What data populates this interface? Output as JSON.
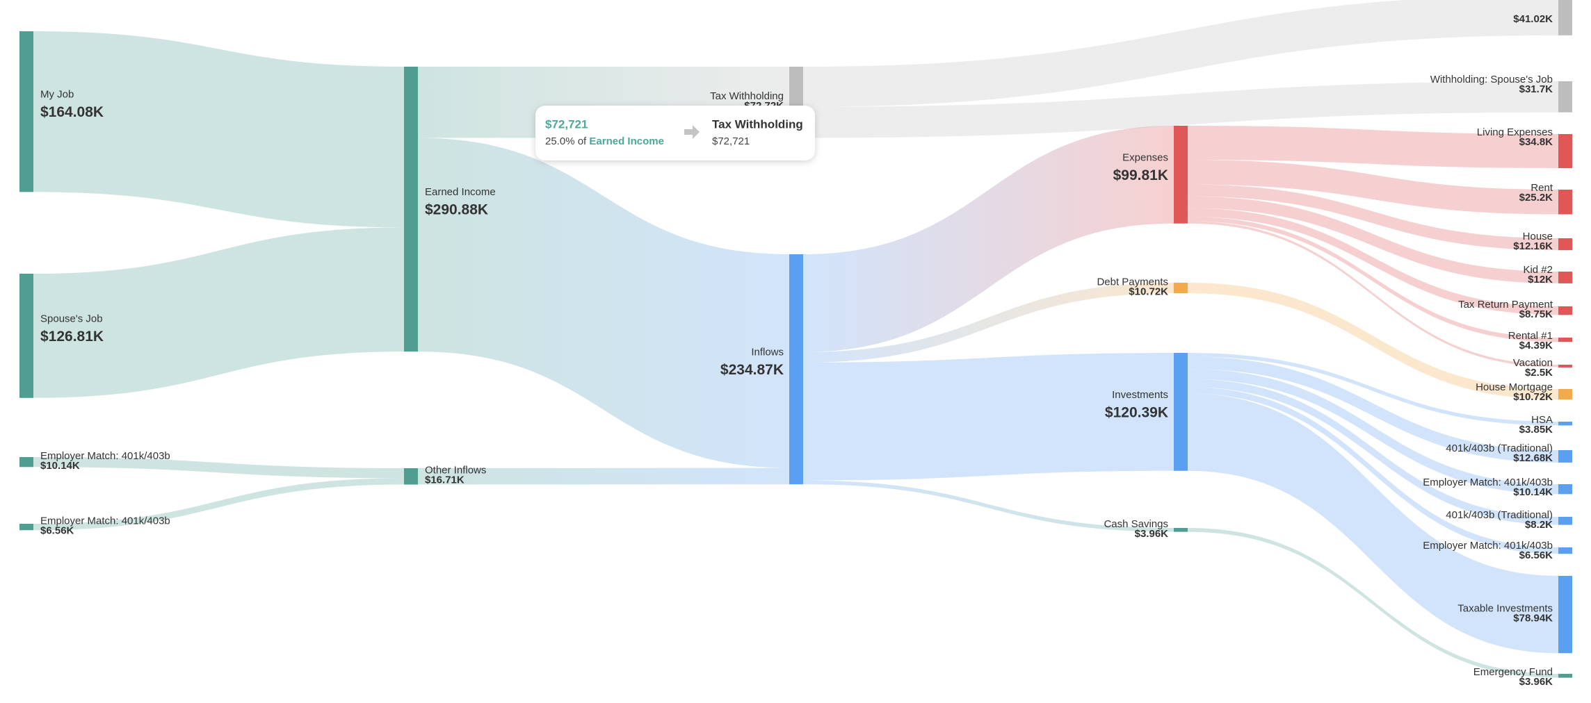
{
  "chart_data": {
    "type": "sankey",
    "nodes": {
      "names": [
        "My Job",
        "Spouse's Job",
        "Employer Match: 401k/403b",
        "Employer Match: 401k/403b",
        "Earned Income",
        "Other Inflows",
        "Tax Withholding",
        "Inflows",
        null,
        "Withholding: Spouse's Job",
        "Expenses",
        "Debt Payments",
        "Investments",
        "Cash Savings",
        "Living Expenses",
        "Rent",
        "House",
        "Kid #2",
        "Tax Return Payment",
        "Rental #1",
        "Vacation",
        "House Mortgage",
        "HSA",
        "401k/403b (Traditional)",
        "Employer Match: 401k/403b",
        "401k/403b (Traditional)",
        "Employer Match: 401k/403b",
        "Taxable Investments",
        "Emergency Fund"
      ],
      "values": [
        164080,
        126810,
        10140,
        6560,
        290880,
        16710,
        72720,
        234870,
        41020,
        31700,
        99810,
        10720,
        120390,
        3960,
        34800,
        25200,
        12160,
        12000,
        8750,
        4390,
        2500,
        10720,
        3850,
        12680,
        10140,
        8200,
        6560,
        78940,
        3960
      ],
      "value_labels": [
        "$164.08K",
        "$126.81K",
        "$10.14K",
        "$6.56K",
        "$290.88K",
        "$16.71K",
        "$72.72K",
        "$234.87K",
        "$41.02K",
        "$31.7K",
        "$99.81K",
        "$10.72K",
        "$120.39K",
        "$3.96K",
        "$34.8K",
        "$25.2K",
        "$12.16K",
        "$12K",
        "$8.75K",
        "$4.39K",
        "$2.5K",
        "$10.72K",
        "$3.85K",
        "$12.68K",
        "$10.14K",
        "$8.2K",
        "$6.56K",
        "$78.94K",
        "$3.96K"
      ],
      "colors": [
        "#4f9e91",
        "#4f9e91",
        "#4f9e91",
        "#4f9e91",
        "#4f9e91",
        "#4f9e91",
        "#bdbdbd",
        "#5b9ff0",
        "#bdbdbd",
        "#bdbdbd",
        "#e05757",
        "#f2aa4c",
        "#5b9ff0",
        "#4f9e91",
        "#e05757",
        "#e05757",
        "#e05757",
        "#e05757",
        "#e05757",
        "#e05757",
        "#e05757",
        "#f2aa4c",
        "#5b9ff0",
        "#5b9ff0",
        "#5b9ff0",
        "#5b9ff0",
        "#5b9ff0",
        "#5b9ff0",
        "#4f9e91"
      ]
    },
    "links": [
      {
        "source": 0,
        "target": 4,
        "value": 164080
      },
      {
        "source": 1,
        "target": 4,
        "value": 126810
      },
      {
        "source": 2,
        "target": 5,
        "value": 10140
      },
      {
        "source": 3,
        "target": 5,
        "value": 6560
      },
      {
        "source": 4,
        "target": 6,
        "value": 72721
      },
      {
        "source": 4,
        "target": 7,
        "value": 218160
      },
      {
        "source": 5,
        "target": 7,
        "value": 16710
      },
      {
        "source": 6,
        "target": 8,
        "value": 41020
      },
      {
        "source": 6,
        "target": 9,
        "value": 31700
      },
      {
        "source": 7,
        "target": 10,
        "value": 99810
      },
      {
        "source": 7,
        "target": 11,
        "value": 10720
      },
      {
        "source": 7,
        "target": 12,
        "value": 120390
      },
      {
        "source": 7,
        "target": 13,
        "value": 3960
      },
      {
        "source": 10,
        "target": 14,
        "value": 34800
      },
      {
        "source": 10,
        "target": 15,
        "value": 25200
      },
      {
        "source": 10,
        "target": 16,
        "value": 12160
      },
      {
        "source": 10,
        "target": 17,
        "value": 12000
      },
      {
        "source": 10,
        "target": 18,
        "value": 8750
      },
      {
        "source": 10,
        "target": 19,
        "value": 4390
      },
      {
        "source": 10,
        "target": 20,
        "value": 2500
      },
      {
        "source": 11,
        "target": 21,
        "value": 10720
      },
      {
        "source": 12,
        "target": 22,
        "value": 3850
      },
      {
        "source": 12,
        "target": 23,
        "value": 12680
      },
      {
        "source": 12,
        "target": 24,
        "value": 10140
      },
      {
        "source": 12,
        "target": 25,
        "value": 8200
      },
      {
        "source": 12,
        "target": 26,
        "value": 6560
      },
      {
        "source": 12,
        "target": 27,
        "value": 78940
      },
      {
        "source": 13,
        "target": 28,
        "value": 3960
      }
    ],
    "tooltip": {
      "amount": "$72,721",
      "share": "25.0% of",
      "source": "Earned Income",
      "target": "Tax Withholding",
      "target_amount": "$72,721"
    }
  }
}
